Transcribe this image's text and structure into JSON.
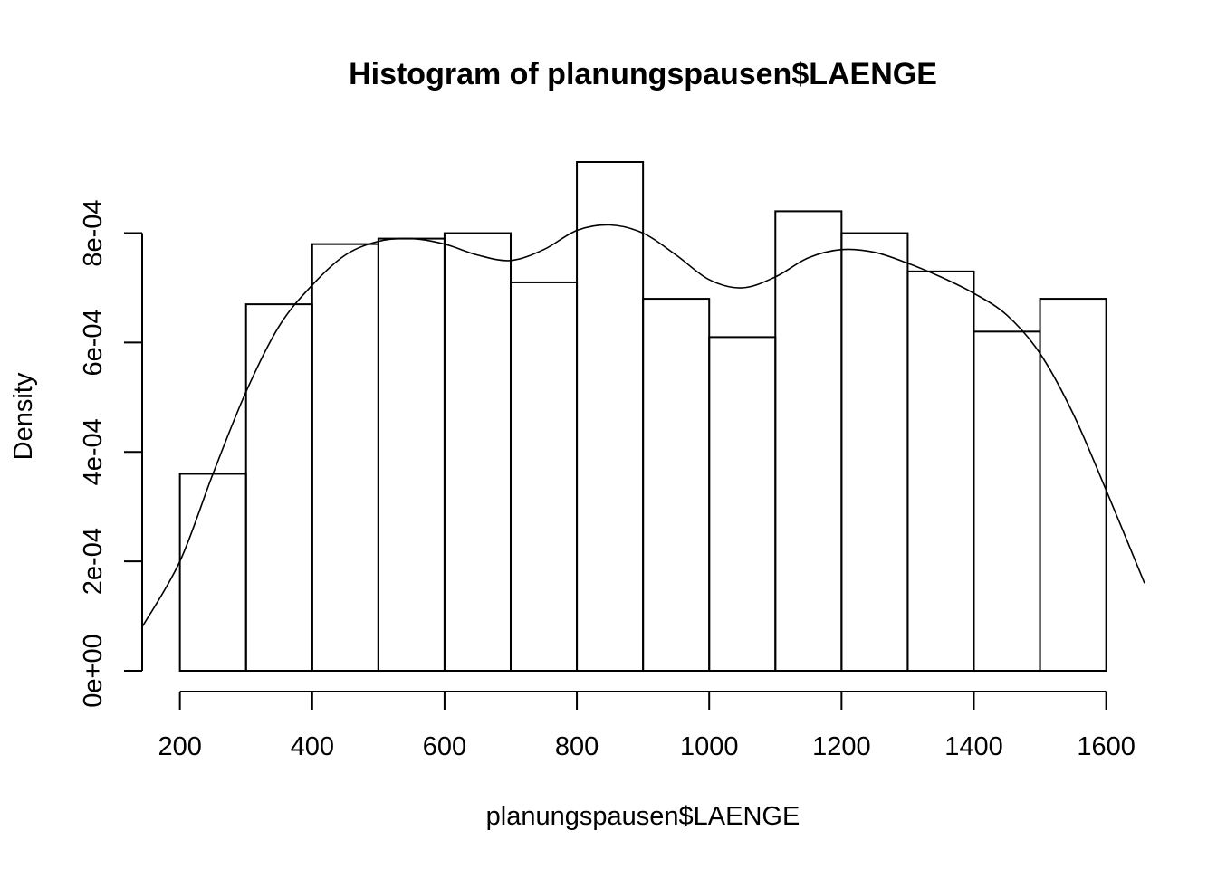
{
  "chart_data": {
    "type": "histogram",
    "title": "Histogram of planungspausen$LAENGE",
    "xlabel": "planungspausen$LAENGE",
    "ylabel": "Density",
    "bins": [
      {
        "from": 200,
        "to": 300,
        "density": 0.00036
      },
      {
        "from": 300,
        "to": 400,
        "density": 0.00067
      },
      {
        "from": 400,
        "to": 500,
        "density": 0.00078
      },
      {
        "from": 500,
        "to": 600,
        "density": 0.00079
      },
      {
        "from": 600,
        "to": 700,
        "density": 0.0008
      },
      {
        "from": 700,
        "to": 800,
        "density": 0.00071
      },
      {
        "from": 800,
        "to": 900,
        "density": 0.00093
      },
      {
        "from": 900,
        "to": 1000,
        "density": 0.00068
      },
      {
        "from": 1000,
        "to": 1100,
        "density": 0.00061
      },
      {
        "from": 1100,
        "to": 1200,
        "density": 0.00084
      },
      {
        "from": 1200,
        "to": 1300,
        "density": 0.0008
      },
      {
        "from": 1300,
        "to": 1400,
        "density": 0.00073
      },
      {
        "from": 1400,
        "to": 1500,
        "density": 0.00062
      },
      {
        "from": 1500,
        "to": 1600,
        "density": 0.00068
      }
    ],
    "density_curve": {
      "x": [
        143,
        200,
        250,
        300,
        350,
        400,
        450,
        500,
        550,
        600,
        650,
        700,
        750,
        800,
        850,
        900,
        950,
        1000,
        1050,
        1100,
        1150,
        1200,
        1250,
        1300,
        1350,
        1400,
        1450,
        1500,
        1550,
        1600,
        1658
      ],
      "y": [
        8e-05,
        0.0002,
        0.00036,
        0.00051,
        0.00063,
        0.000705,
        0.00076,
        0.000785,
        0.00079,
        0.00078,
        0.00076,
        0.00075,
        0.00077,
        0.000805,
        0.000815,
        0.0008,
        0.00076,
        0.000715,
        0.0007,
        0.00072,
        0.000755,
        0.00077,
        0.000765,
        0.000745,
        0.00072,
        0.00069,
        0.00065,
        0.00058,
        0.00047,
        0.00033,
        0.00016
      ]
    },
    "x_ticks": [
      200,
      400,
      600,
      800,
      1000,
      1200,
      1400,
      1600
    ],
    "x_tick_labels": [
      "200",
      "400",
      "600",
      "800",
      "1000",
      "1200",
      "1400",
      "1600"
    ],
    "y_ticks": [
      0,
      0.0002,
      0.0004,
      0.0006,
      0.0008
    ],
    "y_tick_labels": [
      "0e+00",
      "2e-04",
      "4e-04",
      "6e-04",
      "8e-04"
    ],
    "xlim": [
      143,
      1658
    ],
    "ylim": [
      0,
      0.00093
    ],
    "grid": false,
    "legend": "none"
  }
}
